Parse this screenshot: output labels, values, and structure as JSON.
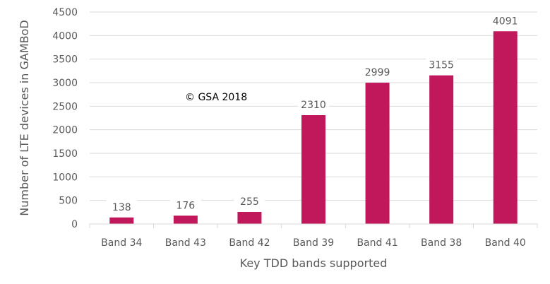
{
  "chart_data": {
    "type": "bar",
    "categories": [
      "Band 34",
      "Band 43",
      "Band 42",
      "Band 39",
      "Band 41",
      "Band 38",
      "Band 40"
    ],
    "values": [
      138,
      176,
      255,
      2310,
      2999,
      3155,
      4091
    ],
    "data_labels": [
      "138",
      "176",
      "255",
      "2310",
      "2999",
      "3155",
      "4091"
    ],
    "xlabel": "Key TDD bands supported",
    "ylabel": "Number of LTE devices in GAMBoD",
    "ylim": [
      0,
      4500
    ],
    "yticks": [
      0,
      500,
      1000,
      1500,
      2000,
      2500,
      3000,
      3500,
      4000,
      4500
    ],
    "ytick_labels": [
      "0",
      "500",
      "1000",
      "1500",
      "2000",
      "2500",
      "3000",
      "3500",
      "4000",
      "4500"
    ],
    "grid": true,
    "annotation": "© GSA 2018",
    "bar_color": "#C0185A",
    "grid_color": "#D9D9D9"
  }
}
